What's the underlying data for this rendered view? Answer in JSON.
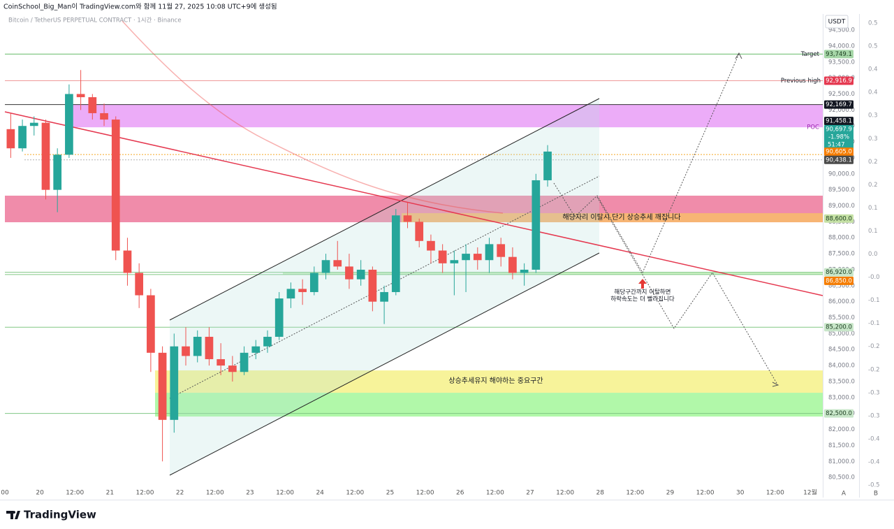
{
  "header": "CoinSchool_Big_Man이 TradingView.com와 함께 11월 27, 2025 10:08 UTC+9에 생성됨",
  "footer": "TradingView",
  "buttons": [
    "A",
    "B"
  ],
  "chart_data": {
    "type": "candlestick",
    "title": "Bitcoin / TetherUS PERPETUAL CONTRACT · 1시간 · Binance",
    "currency": "USDT",
    "x": [
      2,
      6,
      10,
      14,
      18,
      22,
      26,
      30,
      34,
      38,
      42,
      46,
      50,
      54,
      58,
      62,
      66,
      70,
      74,
      78,
      82,
      86,
      90,
      94,
      98,
      102,
      106,
      110,
      114,
      118,
      122,
      126,
      130,
      134,
      138,
      142,
      146,
      150,
      154,
      158,
      162,
      166,
      170,
      174,
      178,
      182,
      186
    ],
    "open": [
      91400,
      90800,
      91500,
      91600,
      89500,
      90600,
      92500,
      92400,
      91900,
      91700,
      87600,
      86900,
      86200,
      84400,
      82300,
      84600,
      84300,
      84900,
      84200,
      84000,
      83800,
      84400,
      84600,
      84900,
      86100,
      86400,
      86300,
      86900,
      87300,
      87100,
      86700,
      87000,
      86000,
      86300,
      88700,
      88500,
      87900,
      87600,
      87200,
      87300,
      87500,
      87300,
      87800,
      87400,
      86900,
      87000,
      89800
    ],
    "high": [
      91900,
      91700,
      91800,
      91700,
      90800,
      92800,
      93250,
      92500,
      92200,
      91800,
      88000,
      87200,
      86400,
      84600,
      85000,
      85200,
      85100,
      85200,
      84700,
      84300,
      84600,
      84800,
      85100,
      86300,
      86600,
      86700,
      87100,
      87500,
      87900,
      87500,
      87300,
      87100,
      86500,
      88900,
      89100,
      88600,
      88100,
      87800,
      87600,
      87800,
      87700,
      88000,
      88000,
      87700,
      87200,
      90000,
      90900
    ],
    "low": [
      90500,
      90700,
      91200,
      89200,
      88800,
      90500,
      92000,
      91700,
      91500,
      87300,
      86500,
      85800,
      83800,
      81000,
      81900,
      84000,
      84100,
      84000,
      83700,
      83500,
      83700,
      84200,
      84400,
      84800,
      85800,
      85900,
      86200,
      86700,
      87000,
      86400,
      86500,
      85700,
      85300,
      86200,
      88300,
      87700,
      87200,
      86900,
      86200,
      86300,
      87000,
      86900,
      87100,
      86700,
      86500,
      86900,
      89600
    ],
    "close": [
      90800,
      91500,
      91600,
      89500,
      90600,
      92500,
      92400,
      91900,
      91700,
      87600,
      86900,
      86200,
      84400,
      82300,
      84600,
      84300,
      84900,
      84200,
      84000,
      83800,
      84400,
      84600,
      84900,
      86100,
      86400,
      86300,
      86900,
      87300,
      87100,
      86700,
      87000,
      86000,
      86300,
      88700,
      88500,
      87900,
      87600,
      87200,
      87300,
      87500,
      87300,
      87800,
      87400,
      86900,
      87000,
      89800,
      90697.9
    ],
    "up_color": "#26a69a",
    "down_color": "#ef5350",
    "xlim": [
      0,
      280.3
    ],
    "xticks": [
      {
        "value": 0,
        "label": "00"
      },
      {
        "value": 12,
        "label": "20"
      },
      {
        "value": 24,
        "label": "12:00"
      },
      {
        "value": 36,
        "label": "21"
      },
      {
        "value": 48,
        "label": "12:00"
      },
      {
        "value": 60,
        "label": "22"
      },
      {
        "value": 72,
        "label": "12:00"
      },
      {
        "value": 84,
        "label": "23"
      },
      {
        "value": 96,
        "label": "12:00"
      },
      {
        "value": 108,
        "label": "24"
      },
      {
        "value": 120,
        "label": "12:00"
      },
      {
        "value": 132,
        "label": "25"
      },
      {
        "value": 144,
        "label": "12:00"
      },
      {
        "value": 156,
        "label": "26"
      },
      {
        "value": 168,
        "label": "12:00"
      },
      {
        "value": 180,
        "label": "27"
      },
      {
        "value": 192,
        "label": "12:00"
      },
      {
        "value": 204,
        "label": "28"
      },
      {
        "value": 216,
        "label": "12:00"
      },
      {
        "value": 228,
        "label": "29"
      },
      {
        "value": 240,
        "label": "12:00"
      },
      {
        "value": 252,
        "label": "30"
      },
      {
        "value": 264,
        "label": "12:00"
      },
      {
        "value": 276,
        "label": "12월"
      }
    ],
    "ylim": [
      80240,
      94830
    ],
    "yticks": [
      {
        "value": 80500,
        "label": "80,500.0"
      },
      {
        "value": 81000,
        "label": "81,000.0"
      },
      {
        "value": 81500,
        "label": "81,500.0"
      },
      {
        "value": 82000,
        "label": "82,000.0"
      },
      {
        "value": 82500,
        "label": "82,500.0"
      },
      {
        "value": 83000,
        "label": "83,000.0"
      },
      {
        "value": 83500,
        "label": "83,500.0"
      },
      {
        "value": 84000,
        "label": "84,000.0"
      },
      {
        "value": 84500,
        "label": "84,500.0"
      },
      {
        "value": 85000,
        "label": "85,000.0"
      },
      {
        "value": 85500,
        "label": "85,500.0"
      },
      {
        "value": 86000,
        "label": "86,000.0"
      },
      {
        "value": 86500,
        "label": "86,500.0"
      },
      {
        "value": 87000,
        "label": "87,000.0"
      },
      {
        "value": 87500,
        "label": "87,500.0"
      },
      {
        "value": 88000,
        "label": "88,000.0"
      },
      {
        "value": 88500,
        "label": "88,500.0"
      },
      {
        "value": 89000,
        "label": "89,000.0"
      },
      {
        "value": 89500,
        "label": "89,500.0"
      },
      {
        "value": 90000,
        "label": "90,000.0"
      },
      {
        "value": 90500,
        "label": "90,500.0"
      },
      {
        "value": 91000,
        "label": "91,000.0"
      },
      {
        "value": 91500,
        "label": "91,500.0"
      },
      {
        "value": 92000,
        "label": "92,000.0"
      },
      {
        "value": 92500,
        "label": "92,500.0"
      },
      {
        "value": 93000,
        "label": "93,000.0"
      },
      {
        "value": 93500,
        "label": "93,500.0"
      },
      {
        "value": 94000,
        "label": "94,000.0"
      },
      {
        "value": 94500,
        "label": "94,500.0"
      }
    ],
    "y2lim": [
      -0.5015,
      0.5076
    ],
    "y2ticks": [
      0.5,
      {
        "value": 0.45,
        "label": "0.5"
      },
      0.4,
      {
        "value": 0.35,
        "label": "0.4"
      },
      0.3,
      {
        "value": 0.25,
        "label": "0.3"
      },
      0.2,
      {
        "value": 0.15,
        "label": "0.2"
      },
      0.1,
      {
        "value": 0.05,
        "label": "0.1"
      },
      {
        "value": 0,
        "label": "0.0"
      },
      {
        "value": -0.05,
        "label": "-0.0"
      },
      -0.1,
      {
        "value": -0.15,
        "label": "-0.1"
      },
      -0.2,
      {
        "value": -0.25,
        "label": "-0.2"
      },
      -0.3,
      {
        "value": -0.35,
        "label": "-0.3"
      },
      -0.4,
      {
        "value": -0.45,
        "label": "-0.4"
      },
      -0.5
    ],
    "levels": [
      {
        "value": 93749.1,
        "label": "93,749.1",
        "name": "Target",
        "color": "#a5d6a7",
        "text_color": "#1b3d1f",
        "line": true,
        "line_color": "#66bb6a"
      },
      {
        "value": 92916.9,
        "label": "92,916.9",
        "name": "Previous high",
        "color": "#e53950",
        "text_color": "#ffffff",
        "line": true,
        "line_color": "#ef9a9a"
      },
      {
        "value": 92169.7,
        "label": "92,169.7",
        "color": "#131722",
        "text_color": "#ffffff",
        "line": true,
        "line_color": "#333333"
      },
      {
        "value": 91458.1,
        "label": "91,458.1",
        "name": "POC",
        "color": "#131722",
        "text_color": "#ffffff",
        "line": false
      },
      {
        "value": 90697.9,
        "label": "90,697.9",
        "change": "-1.98%",
        "countdown": "51:47",
        "color": "#26a69a",
        "text_color": "#ffffff",
        "line": false
      },
      {
        "value": 90605.0,
        "label": "90,605.0",
        "color": "#f57c00",
        "text_color": "#ffffff",
        "line": true,
        "line_color": "#f5a623"
      },
      {
        "value": 90438.1,
        "label": "90,438.1",
        "color": "#4a4a4a",
        "text_color": "#ffffff",
        "line": true,
        "line_color": "#b0b0b0"
      },
      {
        "value": 88600.0,
        "label": "88,600.0",
        "color": "#c5e1a5",
        "text_color": "#1b3d1f",
        "line": false
      },
      {
        "value": 86920.0,
        "label": "86,920.0",
        "color": "#c8e6c9",
        "text_color": "#1b3d1f",
        "line": true,
        "line_color": "#81c784"
      },
      {
        "value": 86850.0,
        "label": "86,850.0",
        "color": "#f57c00",
        "text_color": "#ffffff",
        "line": true,
        "line_color": "#81c784"
      },
      {
        "value": 85200.0,
        "label": "85,200.0",
        "color": "#c8e6c9",
        "text_color": "#1b3d1f",
        "line": true,
        "line_color": "#81c784"
      },
      {
        "value": 82500.0,
        "label": "82,500.0",
        "color": "#c8e6c9",
        "text_color": "#1b3d1f",
        "line": true,
        "line_color": "#81c784"
      }
    ],
    "zones": [
      {
        "from": 91458.1,
        "to": 92169.7,
        "color": "#eaa3f7"
      },
      {
        "from": 88486,
        "to": 89318,
        "color": "#ee7fa1"
      },
      {
        "from": 88486,
        "to": 88770,
        "color": "#f7b96e"
      },
      {
        "from": 86850,
        "to": 86920,
        "color": "#c5f0bd"
      },
      {
        "from": 83148,
        "to": 83848,
        "color": "#f6f28f"
      },
      {
        "from": 82404,
        "to": 83148,
        "color": "#a9f7a0"
      }
    ],
    "annotations": [
      "해당자리 이탈시 단기 상승추세 깨집니다",
      "해당구간까지 이탈하면",
      "하락속도는 더 빨라집니다",
      "상승추세유지 해야하는 중요구간"
    ]
  }
}
